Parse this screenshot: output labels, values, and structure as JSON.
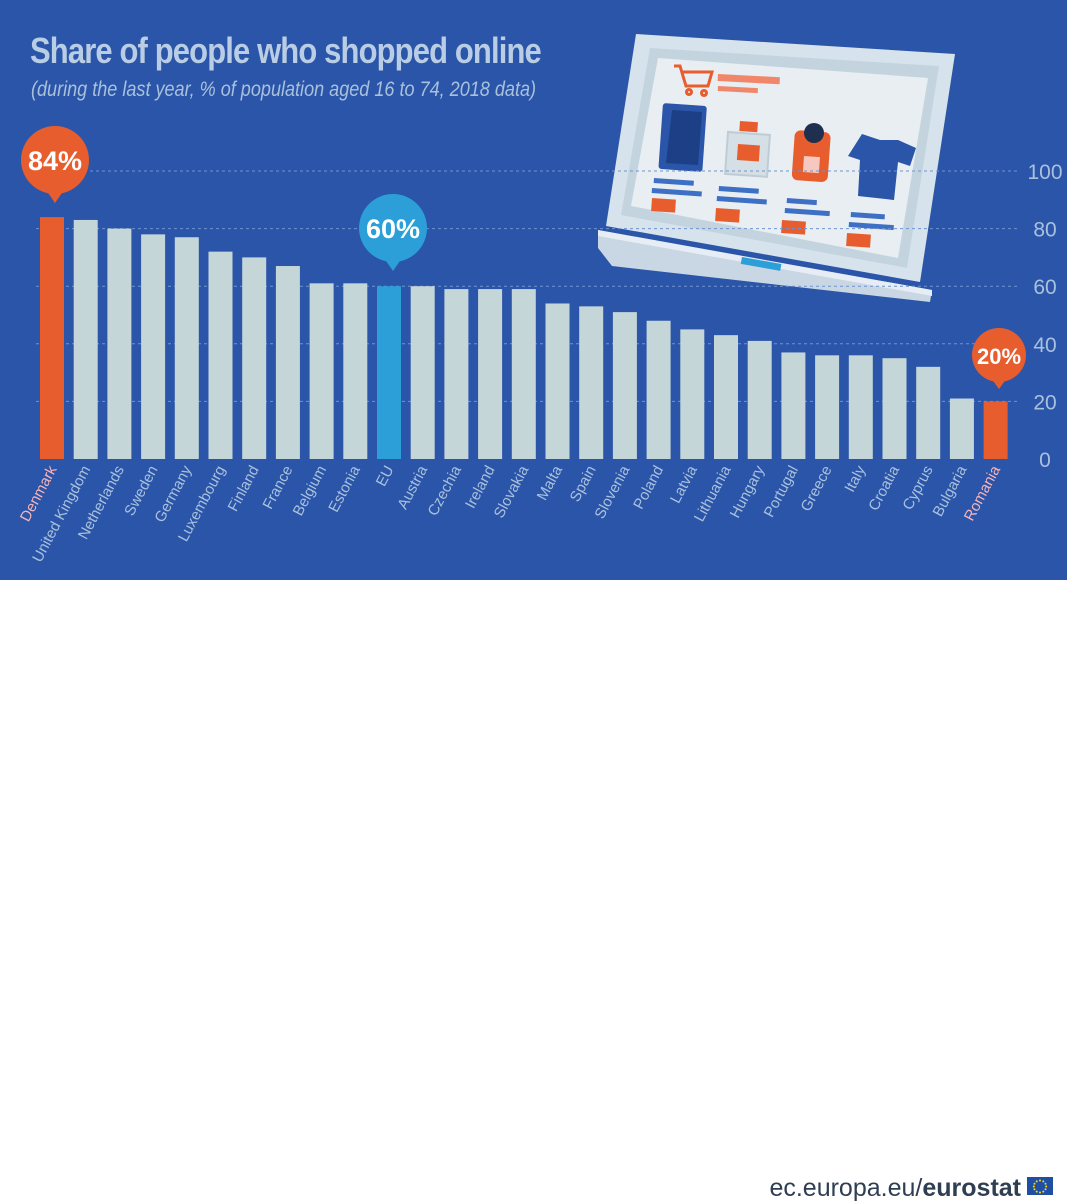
{
  "header": {
    "title": "Share of people who shopped online",
    "subtitle": "(during the last year, % of population aged 16 to 74, 2018 data)"
  },
  "footer": {
    "site": "ec.europa.eu/",
    "brand": "eurostat"
  },
  "callouts": {
    "first": "84%",
    "eu": "60%",
    "last": "20%"
  },
  "colors": {
    "background": "#2b55a8",
    "bar": "#c5d6d9",
    "highlight": "#e85d2e",
    "eu": "#2c9fd9",
    "axis_text": "#a9c1dd",
    "highlight_label": "#f6b4b8"
  },
  "chart_data": {
    "type": "bar",
    "title": "Share of people who shopped online",
    "subtitle": "(during the last year, % of population aged 16 to 74, 2018 data)",
    "categories": [
      "Denmark",
      "United Kingdom",
      "Netherlands",
      "Sweden",
      "Germany",
      "Luxembourg",
      "Finland",
      "France",
      "Belgium",
      "Estonia",
      "EU",
      "Austria",
      "Czechia",
      "Ireland",
      "Slovakia",
      "Malta",
      "Spain",
      "Slovenia",
      "Poland",
      "Latvia",
      "Lithuania",
      "Hungary",
      "Portugal",
      "Greece",
      "Italy",
      "Croatia",
      "Cyprus",
      "Bulgaria",
      "Romania"
    ],
    "values": [
      84,
      83,
      80,
      78,
      77,
      72,
      70,
      67,
      61,
      61,
      60,
      60,
      59,
      59,
      59,
      54,
      53,
      51,
      48,
      45,
      43,
      41,
      37,
      36,
      36,
      35,
      32,
      21,
      20
    ],
    "yticks": [
      0,
      20,
      40,
      60,
      80,
      100
    ],
    "ylim": [
      0,
      100
    ],
    "grid": true,
    "y_axis_side": "right",
    "highlighted": {
      "Denmark": "max",
      "EU": "average",
      "Romania": "min"
    }
  }
}
